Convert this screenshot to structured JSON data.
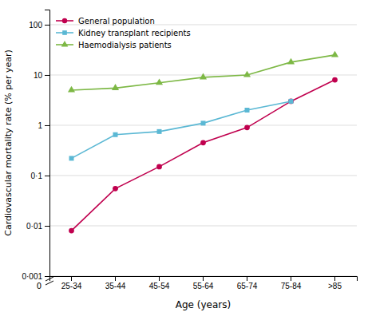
{
  "chart_data": {
    "type": "line",
    "categories": [
      "25-34",
      "35-44",
      "45-54",
      "55-64",
      "65-74",
      "75-84",
      ">85"
    ],
    "series": [
      {
        "name": "General population",
        "color": "#c0004e",
        "marker": "circle",
        "values": [
          0.008,
          0.055,
          0.15,
          0.45,
          0.9,
          3.0,
          8.0
        ]
      },
      {
        "name": "Kidney transplant recipients",
        "color": "#5bb8d4",
        "marker": "square",
        "values": [
          0.22,
          0.65,
          0.75,
          1.1,
          2.0,
          3.0,
          null
        ]
      },
      {
        "name": "Haemodialysis patients",
        "color": "#7db845",
        "marker": "triangle",
        "values": [
          5.0,
          5.5,
          7.0,
          9.0,
          10.0,
          18.0,
          25.0
        ]
      }
    ],
    "xlabel": "Age (years)",
    "ylabel": "Cardiovascular mortality rate (% per year)",
    "log": "y",
    "ylim": [
      0.001,
      200
    ],
    "yticks": [
      {
        "value": 0.001,
        "label": "0·001"
      },
      {
        "value": 0.01,
        "label": "0·01"
      },
      {
        "value": 0.1,
        "label": "0·1"
      },
      1,
      10,
      100
    ],
    "annotations": [
      {
        "text": "0"
      }
    ],
    "grid": true,
    "legend": "upper left"
  }
}
